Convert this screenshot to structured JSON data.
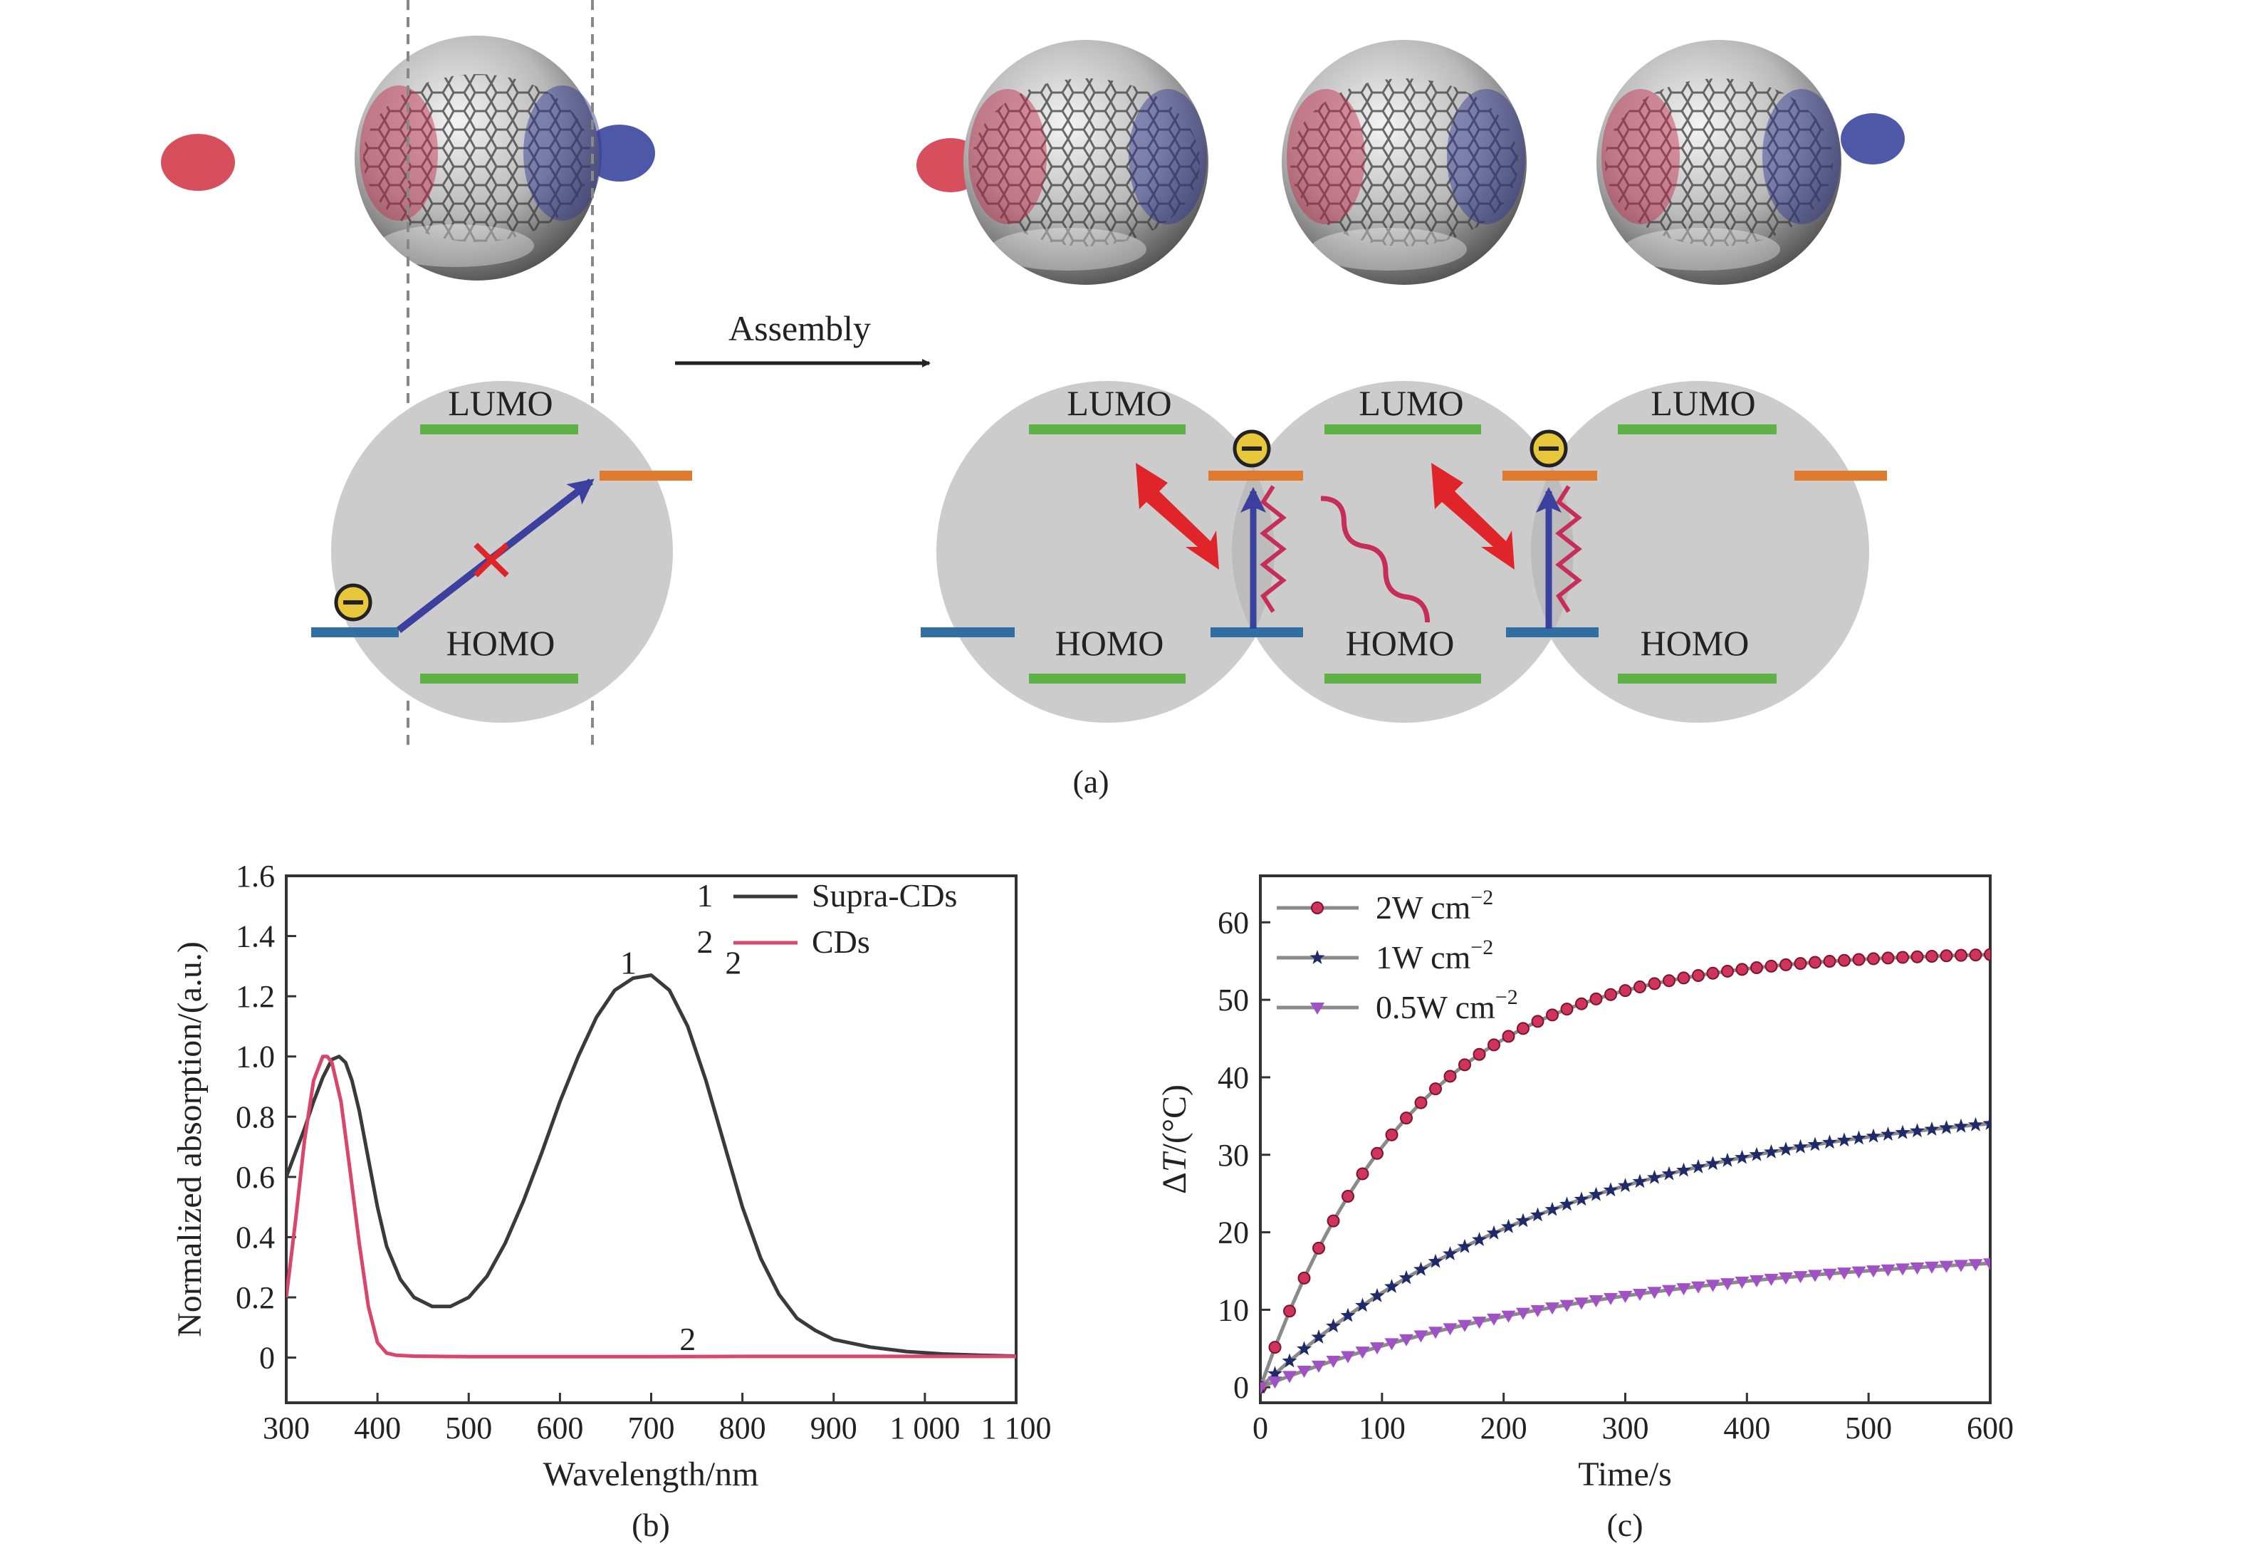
{
  "panels": {
    "a": "(a)",
    "b": "(b)",
    "c": "(c)"
  },
  "diagram": {
    "arrow_label": "Assembly",
    "lumo_label": "LUMO",
    "homo_label": "HOMO",
    "electron_symbol": "−",
    "colors": {
      "circle": "#cccccc",
      "lumo": "#5fb346",
      "homo": "#5fb346",
      "homo_side": "#2f6fa3",
      "lumo_side": "#e07b2e",
      "arrow": "#3b3f9e",
      "lightning": "#e0252a",
      "wave": "#c62d58",
      "electron": "#e8c83a"
    }
  },
  "chart_data": [
    {
      "type": "line",
      "panel": "b",
      "xlabel": "Wavelength/nm",
      "ylabel": "Normalized absorption/(a.u.)",
      "xlim": [
        300,
        1100
      ],
      "ylim": [
        -0.15,
        1.6
      ],
      "xticks": [
        300,
        400,
        500,
        600,
        700,
        800,
        900,
        1000,
        1100
      ],
      "xtick_labels": [
        "300",
        "400",
        "500",
        "600",
        "700",
        "800",
        "900",
        "1 000",
        "1 100"
      ],
      "yticks": [
        0,
        0.2,
        0.4,
        0.6,
        0.8,
        1.0,
        1.2,
        1.4,
        1.6
      ],
      "ytick_labels": [
        "0",
        "0.2",
        "0.4",
        "0.6",
        "0.8",
        "1.0",
        "1.2",
        "1.4",
        "1.6"
      ],
      "legend": "top-right",
      "series": [
        {
          "name": "Supra-CDs",
          "legend_number": "1",
          "curve_label": "1",
          "curve_label_at": [
            675,
            1.31
          ],
          "color": "#3a3a3a",
          "x": [
            300,
            310,
            320,
            330,
            340,
            350,
            358,
            365,
            372,
            380,
            390,
            400,
            410,
            425,
            440,
            460,
            480,
            500,
            520,
            540,
            560,
            580,
            600,
            620,
            640,
            660,
            680,
            700,
            720,
            740,
            760,
            780,
            800,
            820,
            840,
            860,
            880,
            900,
            940,
            980,
            1020,
            1060,
            1100
          ],
          "y": [
            0.6,
            0.68,
            0.76,
            0.85,
            0.93,
            0.99,
            1.0,
            0.98,
            0.92,
            0.82,
            0.66,
            0.5,
            0.37,
            0.26,
            0.2,
            0.17,
            0.17,
            0.2,
            0.27,
            0.38,
            0.52,
            0.68,
            0.85,
            1.0,
            1.13,
            1.22,
            1.26,
            1.27,
            1.22,
            1.1,
            0.92,
            0.71,
            0.5,
            0.33,
            0.21,
            0.13,
            0.09,
            0.06,
            0.035,
            0.02,
            0.012,
            0.008,
            0.005
          ]
        },
        {
          "name": "CDs",
          "legend_number": "2",
          "curve_label": "2",
          "curve_label_at": [
            740,
            0.06
          ],
          "color": "#d9456b",
          "x": [
            300,
            310,
            320,
            330,
            340,
            345,
            350,
            360,
            370,
            380,
            390,
            400,
            410,
            420,
            440,
            500,
            600,
            700,
            800,
            900,
            1000,
            1100
          ],
          "y": [
            0.2,
            0.45,
            0.72,
            0.92,
            1.0,
            1.0,
            0.98,
            0.85,
            0.62,
            0.38,
            0.17,
            0.05,
            0.015,
            0.008,
            0.005,
            0.003,
            0.003,
            0.003,
            0.004,
            0.004,
            0.004,
            0.004
          ]
        }
      ]
    },
    {
      "type": "line",
      "panel": "c",
      "xlabel": "Time/s",
      "ylabel_prefix": "Δ",
      "ylabel_italic": "T",
      "ylabel_suffix": "/(°C)",
      "xlim": [
        0,
        600
      ],
      "ylim": [
        -2,
        66
      ],
      "xticks": [
        0,
        100,
        200,
        300,
        400,
        500,
        600
      ],
      "xtick_labels": [
        "0",
        "100",
        "200",
        "300",
        "400",
        "500",
        "600"
      ],
      "yticks": [
        0,
        10,
        20,
        30,
        40,
        50,
        60
      ],
      "ytick_labels": [
        "0",
        "10",
        "20",
        "30",
        "40",
        "50",
        "60"
      ],
      "legend": "top-left",
      "series": [
        {
          "name": "2W cm",
          "name_superscript": "−2",
          "color": "#d1345b",
          "marker": "circle",
          "asymptote": 56.3,
          "tau": 125,
          "x_start": 0,
          "x_step": 12,
          "x_end": 600
        },
        {
          "name": "1W cm",
          "name_superscript": "−2",
          "color": "#1f2a6b",
          "marker": "star",
          "asymptote": 37.6,
          "tau": 255,
          "x_start": 0,
          "x_step": 12,
          "x_end": 600
        },
        {
          "name": "0.5W cm",
          "name_superscript": "−2",
          "color": "#a052c4",
          "marker": "triangle-down",
          "asymptote": 18.3,
          "tau": 290,
          "x_start": 0,
          "x_step": 12,
          "x_end": 600
        }
      ]
    }
  ]
}
